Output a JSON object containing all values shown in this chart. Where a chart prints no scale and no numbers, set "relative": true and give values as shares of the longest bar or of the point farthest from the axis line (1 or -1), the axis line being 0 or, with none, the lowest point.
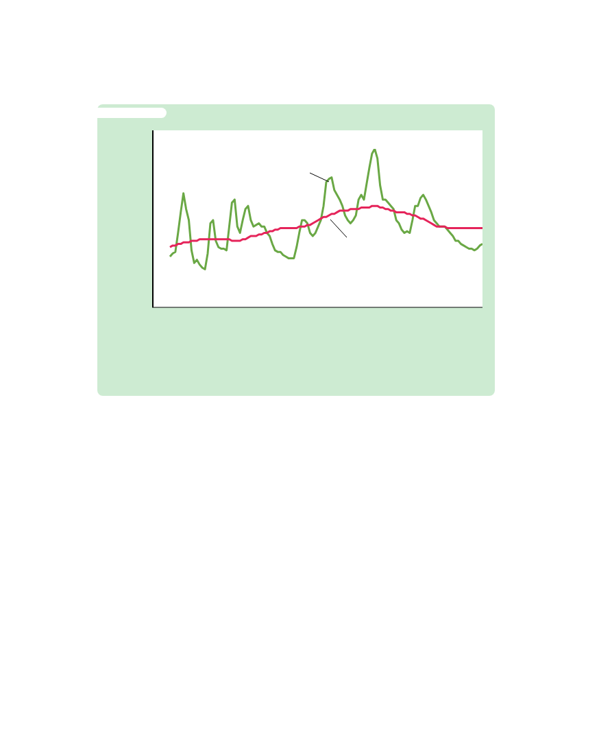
{
  "chart_data": {
    "type": "line",
    "relative": true,
    "categories": [
      null,
      null,
      null,
      null,
      null,
      null,
      null,
      null,
      null,
      null,
      null,
      null,
      null,
      null,
      null,
      null,
      null,
      null,
      null,
      null,
      null,
      null,
      null,
      null,
      null,
      null,
      null,
      null,
      null,
      null,
      null,
      null,
      null,
      null,
      null,
      null,
      null,
      null,
      null,
      null,
      null,
      null,
      null,
      null,
      null,
      null,
      null,
      null,
      null,
      null,
      null,
      null,
      null,
      null,
      null,
      null,
      null,
      null,
      null,
      null,
      null,
      null,
      null,
      null,
      null,
      null,
      null,
      null,
      null,
      null,
      null,
      null,
      null,
      null,
      null,
      null,
      null,
      null,
      null,
      null,
      null,
      null,
      null,
      null,
      null,
      null,
      null,
      null,
      null,
      null,
      null,
      null,
      null,
      null,
      null,
      null,
      null,
      null,
      null,
      null,
      null,
      null,
      null,
      null,
      null,
      null,
      null,
      null,
      null,
      null,
      null,
      null,
      null,
      null,
      null,
      null,
      null
    ],
    "series": [
      {
        "color": "#6aa845",
        "values": [
          0.32,
          0.34,
          0.35,
          0.47,
          0.6,
          0.72,
          0.62,
          0.55,
          0.36,
          0.28,
          0.3,
          0.27,
          0.25,
          0.24,
          0.34,
          0.53,
          0.55,
          0.42,
          0.38,
          0.37,
          0.37,
          0.36,
          0.51,
          0.66,
          0.68,
          0.51,
          0.47,
          0.55,
          0.62,
          0.64,
          0.55,
          0.51,
          0.52,
          0.53,
          0.51,
          0.51,
          0.47,
          0.45,
          0.4,
          0.36,
          0.35,
          0.35,
          0.33,
          0.32,
          0.31,
          0.31,
          0.31,
          0.38,
          0.47,
          0.55,
          0.55,
          0.53,
          0.47,
          0.45,
          0.47,
          0.51,
          0.55,
          0.64,
          0.79,
          0.81,
          0.82,
          0.74,
          0.71,
          0.68,
          0.64,
          0.58,
          0.55,
          0.53,
          0.55,
          0.58,
          0.68,
          0.71,
          0.68,
          0.78,
          0.88,
          0.97,
          1,
          0.94,
          0.77,
          0.68,
          0.68,
          0.66,
          0.64,
          0.62,
          0.55,
          0.53,
          0.49,
          0.47,
          0.48,
          0.47,
          0.55,
          0.64,
          0.64,
          0.69,
          0.71,
          0.68,
          0.64,
          0.6,
          0.55,
          0.53,
          0.51,
          0.51,
          0.51,
          0.49,
          0.47,
          0.45,
          0.42,
          0.42,
          0.4,
          0.39,
          0.38,
          0.37,
          0.37,
          0.36,
          0.37,
          0.39,
          0.4
        ]
      },
      {
        "color": "#e5245a",
        "values": [
          0.38,
          0.39,
          0.39,
          0.4,
          0.4,
          0.41,
          0.41,
          0.41,
          0.42,
          0.42,
          0.42,
          0.43,
          0.43,
          0.43,
          0.43,
          0.43,
          0.43,
          0.43,
          0.43,
          0.43,
          0.43,
          0.43,
          0.43,
          0.42,
          0.42,
          0.42,
          0.42,
          0.43,
          0.43,
          0.44,
          0.45,
          0.45,
          0.45,
          0.46,
          0.46,
          0.47,
          0.47,
          0.48,
          0.48,
          0.49,
          0.49,
          0.5,
          0.5,
          0.5,
          0.5,
          0.5,
          0.5,
          0.5,
          0.51,
          0.51,
          0.51,
          0.52,
          0.52,
          0.53,
          0.54,
          0.55,
          0.56,
          0.57,
          0.57,
          0.58,
          0.59,
          0.59,
          0.6,
          0.61,
          0.61,
          0.61,
          0.61,
          0.62,
          0.62,
          0.62,
          0.62,
          0.63,
          0.63,
          0.63,
          0.63,
          0.64,
          0.64,
          0.64,
          0.63,
          0.63,
          0.62,
          0.62,
          0.61,
          0.61,
          0.6,
          0.6,
          0.6,
          0.6,
          0.59,
          0.59,
          0.58,
          0.58,
          0.57,
          0.56,
          0.56,
          0.55,
          0.54,
          0.53,
          0.52,
          0.51,
          0.51,
          0.51,
          0.51,
          0.5,
          0.5,
          0.5,
          0.5,
          0.5,
          0.5,
          0.5,
          0.5,
          0.5,
          0.5,
          0.5,
          0.5,
          0.5,
          0.5
        ]
      }
    ]
  }
}
